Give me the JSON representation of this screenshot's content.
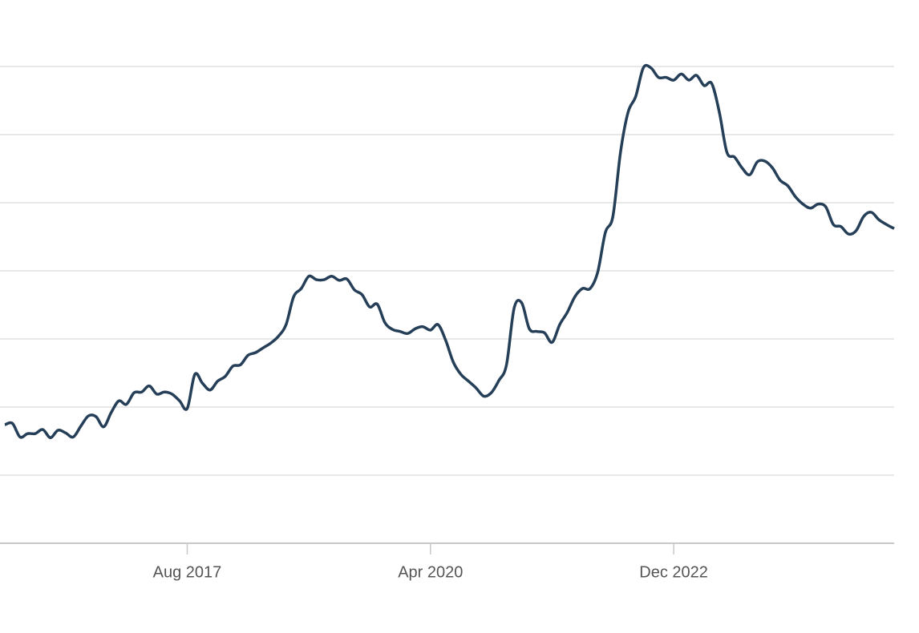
{
  "chart_data": {
    "type": "line",
    "x": [
      "Aug 2015",
      "Sep 2015",
      "Oct 2015",
      "Nov 2015",
      "Dec 2015",
      "Jan 2016",
      "Feb 2016",
      "Mar 2016",
      "Apr 2016",
      "May 2016",
      "Jun 2016",
      "Jul 2016",
      "Aug 2016",
      "Sep 2016",
      "Oct 2016",
      "Nov 2016",
      "Dec 2016",
      "Jan 2017",
      "Feb 2017",
      "Mar 2017",
      "Apr 2017",
      "May 2017",
      "Jun 2017",
      "Jul 2017",
      "Aug 2017",
      "Sep 2017",
      "Oct 2017",
      "Nov 2017",
      "Dec 2017",
      "Jan 2018",
      "Feb 2018",
      "Mar 2018",
      "Apr 2018",
      "May 2018",
      "Jun 2018",
      "Jul 2018",
      "Aug 2018",
      "Sep 2018",
      "Oct 2018",
      "Nov 2018",
      "Dec 2018",
      "Jan 2019",
      "Feb 2019",
      "Mar 2019",
      "Apr 2019",
      "May 2019",
      "Jun 2019",
      "Jul 2019",
      "Aug 2019",
      "Sep 2019",
      "Oct 2019",
      "Nov 2019",
      "Dec 2019",
      "Jan 2020",
      "Feb 2020",
      "Mar 2020",
      "Apr 2020",
      "May 2020",
      "Jun 2020",
      "Jul 2020",
      "Aug 2020",
      "Sep 2020",
      "Oct 2020",
      "Nov 2020",
      "Dec 2020",
      "Jan 2021",
      "Feb 2021",
      "Mar 2021",
      "Apr 2021",
      "May 2021",
      "Jun 2021",
      "Jul 2021",
      "Aug 2021",
      "Sep 2021",
      "Oct 2021",
      "Nov 2021",
      "Dec 2021",
      "Jan 2022",
      "Feb 2022",
      "Mar 2022",
      "Apr 2022",
      "May 2022",
      "Jun 2022",
      "Jul 2022",
      "Aug 2022",
      "Sep 2022",
      "Oct 2022",
      "Nov 2022",
      "Dec 2022",
      "Jan 2023",
      "Feb 2023",
      "Mar 2023",
      "Apr 2023",
      "May 2023",
      "Jun 2023",
      "Jul 2023",
      "Aug 2023",
      "Sep 2023",
      "Oct 2023",
      "Nov 2023",
      "Dec 2023",
      "Jan 2024",
      "Feb 2024",
      "Mar 2024",
      "Apr 2024",
      "May 2024",
      "Jun 2024",
      "Jul 2024",
      "Aug 2024",
      "Sep 2024",
      "Oct 2024",
      "Nov 2024",
      "Dec 2024",
      "Jan 2025",
      "Feb 2025",
      "Mar 2025",
      "Apr 2025",
      "May 2025"
    ],
    "values": [
      1.74,
      1.76,
      1.56,
      1.61,
      1.61,
      1.67,
      1.55,
      1.66,
      1.62,
      1.56,
      1.72,
      1.87,
      1.86,
      1.71,
      1.92,
      2.09,
      2.04,
      2.21,
      2.22,
      2.31,
      2.19,
      2.22,
      2.19,
      2.09,
      1.98,
      2.48,
      2.35,
      2.25,
      2.38,
      2.45,
      2.6,
      2.62,
      2.76,
      2.8,
      2.87,
      2.94,
      3.04,
      3.21,
      3.62,
      3.74,
      3.92,
      3.87,
      3.87,
      3.92,
      3.86,
      3.88,
      3.72,
      3.65,
      3.47,
      3.51,
      3.24,
      3.14,
      3.11,
      3.08,
      3.15,
      3.18,
      3.13,
      3.21,
      2.98,
      2.66,
      2.48,
      2.38,
      2.28,
      2.16,
      2.21,
      2.39,
      2.62,
      3.45,
      3.53,
      3.15,
      3.11,
      3.09,
      2.95,
      3.21,
      3.39,
      3.62,
      3.74,
      3.74,
      3.98,
      4.56,
      4.8,
      5.74,
      6.33,
      6.56,
      6.98,
      6.98,
      6.84,
      6.84,
      6.8,
      6.89,
      6.8,
      6.87,
      6.72,
      6.75,
      6.33,
      5.74,
      5.67,
      5.51,
      5.41,
      5.6,
      5.61,
      5.51,
      5.33,
      5.25,
      5.09,
      4.98,
      4.92,
      4.98,
      4.94,
      4.68,
      4.65,
      4.54,
      4.59,
      4.8,
      4.86,
      4.75,
      4.68,
      4.62
    ],
    "color": "#263f58",
    "xlim": [
      "Aug 2015",
      "May 2025"
    ],
    "xticks": [
      "Aug 2017",
      "Apr 2020",
      "Dec 2022"
    ],
    "ylim": [
      0,
      7
    ],
    "ygrid": [
      1,
      2,
      3,
      4,
      5,
      6,
      7
    ]
  }
}
